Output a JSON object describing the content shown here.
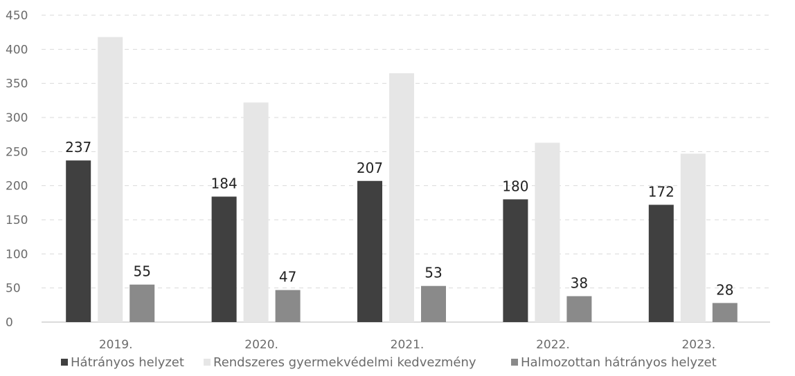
{
  "chart_data": {
    "type": "bar",
    "categories": [
      "2019.",
      "2020.",
      "2021.",
      "2022.",
      "2023."
    ],
    "series": [
      {
        "name": "Hátrányos helyzet",
        "values": [
          237,
          184,
          207,
          180,
          172
        ],
        "color": "#404040",
        "show_labels": true
      },
      {
        "name": "Rendszeres gyermekvédelmi kedvezmény",
        "values": [
          418,
          322,
          365,
          263,
          247
        ],
        "color": "#e6e6e6",
        "show_labels": false
      },
      {
        "name": "Halmozottan hátrányos helyzet",
        "values": [
          55,
          47,
          53,
          38,
          28
        ],
        "color": "#8a8a8a",
        "show_labels": true
      }
    ],
    "yticks": [
      0,
      50,
      100,
      150,
      200,
      250,
      300,
      350,
      400,
      450
    ],
    "ylim": [
      0,
      450
    ],
    "grid": true,
    "legend_position": "bottom",
    "title": "",
    "xlabel": "",
    "ylabel": ""
  }
}
